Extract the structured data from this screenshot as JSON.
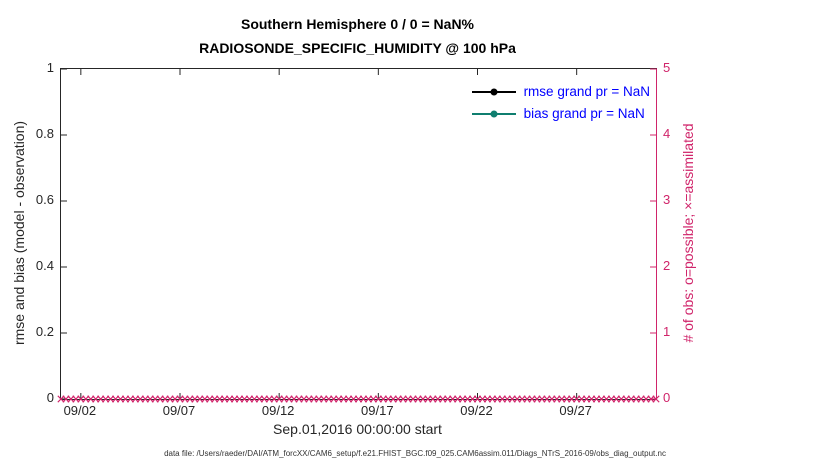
{
  "legend": {
    "items": [
      {
        "label": "rmse grand pr = NaN",
        "series": "rmse"
      },
      {
        "label": "bias grand pr = NaN",
        "series": "bias"
      }
    ]
  },
  "footer": "data file: /Users/raeder/DAI/ATM_forcXX/CAM6_setup/f.e21.FHIST_BGC.f09_025.CAM6assim.011/Diags_NTrS_2016-09/obs_diag_output.nc",
  "chart_data": {
    "type": "line",
    "title": "Southern Hemisphere 0 / 0 = NaN%",
    "subtitle": "RADIOSONDE_SPECIFIC_HUMIDITY @ 100 hPa",
    "xlabel": "Sep.01,2016 00:00:00 start",
    "x_axis": {
      "start": "Sep.01,2016 00:00:00",
      "domain_days": [
        0,
        30
      ],
      "ticks": [
        {
          "day": 1,
          "label": "09/02"
        },
        {
          "day": 6,
          "label": "09/07"
        },
        {
          "day": 11,
          "label": "09/12"
        },
        {
          "day": 16,
          "label": "09/17"
        },
        {
          "day": 21,
          "label": "09/22"
        },
        {
          "day": 26,
          "label": "09/27"
        }
      ]
    },
    "left_axis": {
      "label": "rmse and bias (model - observation)",
      "range": [
        0,
        1
      ],
      "ticks": [
        "0",
        "0.2",
        "0.4",
        "0.6",
        "0.8",
        "1"
      ]
    },
    "right_axis": {
      "label": "# of obs: o=possible; ×=assimilated",
      "range": [
        0,
        5
      ],
      "ticks": [
        "0",
        "1",
        "2",
        "3",
        "4",
        "5"
      ]
    },
    "series": [
      {
        "name": "rmse grand pr",
        "value": "NaN",
        "points": []
      },
      {
        "name": "bias grand pr",
        "value": "NaN",
        "points": []
      }
    ],
    "obs_counts": {
      "possible": 0,
      "assimilated": 0,
      "marker_value": 0,
      "marker_count": 121,
      "marker_symbol": "x"
    },
    "colors": {
      "rmse": "#000000",
      "bias": "#0f7e6f",
      "legend_text": "#0000ff",
      "right_axis": "#d0246a",
      "axis": "#262626"
    },
    "grid": false,
    "legend_position": "top-right-inside"
  }
}
